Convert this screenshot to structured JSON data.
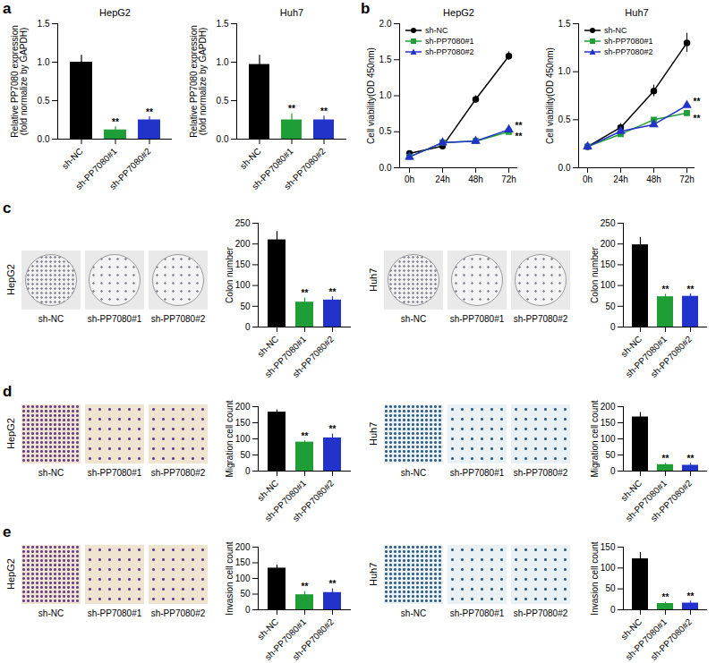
{
  "chart_data": [
    {
      "type": "bar",
      "panel": "a",
      "title": "HepG2",
      "categories": [
        "sh-NC",
        "sh-PP7080#1",
        "sh-PP7080#2"
      ],
      "values": [
        1.0,
        0.12,
        0.25
      ],
      "errors": [
        0.09,
        0.04,
        0.04
      ],
      "significance": [
        null,
        "**",
        "**"
      ],
      "colors": [
        "#000000",
        "#1f9e38",
        "#2233cc"
      ],
      "y_label": "Relative PP7080 expression\n(fold normalize by GAPDH)",
      "ylim": [
        0,
        1.5
      ],
      "yticks": [
        {
          "value": 0,
          "label": "0.0"
        },
        0.5,
        {
          "value": 1,
          "label": "1.0"
        },
        1.5
      ]
    },
    {
      "type": "bar",
      "title": "Huh7",
      "categories": [
        "sh-NC",
        "sh-PP7080#1",
        "sh-PP7080#2"
      ],
      "values": [
        0.97,
        0.25,
        0.25
      ],
      "errors": [
        0.12,
        0.08,
        0.05
      ],
      "significance": [
        null,
        "**",
        "**"
      ],
      "colors": [
        "#000000",
        "#1f9e38",
        "#2233cc"
      ],
      "y_label": "Relative PP7080 expression\n(fold normalize by GAPDH)",
      "ylim": [
        0,
        1.5
      ],
      "yticks": [
        {
          "value": 0,
          "label": "0.0"
        },
        0.5,
        {
          "value": 1,
          "label": "1.0"
        },
        1.5
      ]
    },
    {
      "type": "line",
      "panel": "b",
      "title": "HepG2",
      "x": [
        "0h",
        "24h",
        "48h",
        "72h"
      ],
      "legend": "top-left",
      "y_label": "Cell viability(OD 450nm)",
      "ylim": [
        0,
        2
      ],
      "yticks": [
        {
          "value": 0,
          "label": "0.0"
        },
        0.5,
        {
          "value": 1,
          "label": "1.0"
        },
        1.5,
        {
          "value": 2,
          "label": "2.0"
        }
      ],
      "series": [
        {
          "name": "sh-NC",
          "color": "#000000",
          "marker": "circle",
          "values": [
            0.2,
            0.3,
            0.95,
            1.55
          ],
          "errors": [
            0.02,
            0.04,
            0.05,
            0.06
          ]
        },
        {
          "name": "sh-PP7080#1",
          "color": "#1f9e38",
          "marker": "square",
          "values": [
            0.15,
            0.35,
            0.37,
            0.5
          ],
          "errors": [
            0.02,
            0.03,
            0.02,
            0.03
          ],
          "significance": "**"
        },
        {
          "name": "sh-PP7080#2",
          "color": "#2233cc",
          "marker": "triangle",
          "values": [
            0.15,
            0.35,
            0.37,
            0.53
          ],
          "errors": [
            0.02,
            0.03,
            0.02,
            0.03
          ],
          "significance": "**"
        }
      ]
    },
    {
      "type": "line",
      "title": "Huh7",
      "x": [
        "0h",
        "24h",
        "48h",
        "72h"
      ],
      "legend": "top-left",
      "y_label": "Cell viability(OD 450nm)",
      "ylim": [
        0,
        1.5
      ],
      "yticks": [
        {
          "value": 0,
          "label": "0.0"
        },
        0.5,
        {
          "value": 1,
          "label": "1.0"
        },
        1.5
      ],
      "series": [
        {
          "name": "sh-NC",
          "color": "#000000",
          "marker": "circle",
          "values": [
            0.22,
            0.42,
            0.8,
            1.3
          ],
          "errors": [
            0.02,
            0.04,
            0.06,
            0.1
          ]
        },
        {
          "name": "sh-PP7080#1",
          "color": "#1f9e38",
          "marker": "square",
          "values": [
            0.22,
            0.35,
            0.5,
            0.57
          ],
          "errors": [
            0.02,
            0.02,
            0.02,
            0.02
          ],
          "significance": "**"
        },
        {
          "name": "sh-PP7080#2",
          "color": "#2233cc",
          "marker": "triangle",
          "values": [
            0.22,
            0.38,
            0.45,
            0.65
          ],
          "errors": [
            0.02,
            0.02,
            0.02,
            0.02
          ],
          "significance": "**"
        }
      ]
    },
    {
      "type": "bar",
      "categories": [
        "sh-NC",
        "sh-PP7080#1",
        "sh-PP7080#2"
      ],
      "values": [
        210,
        60,
        65
      ],
      "errors": [
        20,
        10,
        8
      ],
      "significance": [
        null,
        "**",
        "**"
      ],
      "colors": [
        "#000000",
        "#1f9e38",
        "#2233cc"
      ],
      "y_label": "Colon number",
      "ylim": [
        0,
        250
      ],
      "yticks": [
        0,
        50,
        100,
        150,
        200,
        250
      ]
    },
    {
      "type": "bar",
      "categories": [
        "sh-NC",
        "sh-PP7080#1",
        "sh-PP7080#2"
      ],
      "values": [
        198,
        73,
        74
      ],
      "errors": [
        18,
        6,
        6
      ],
      "significance": [
        null,
        "**",
        "**"
      ],
      "colors": [
        "#000000",
        "#1f9e38",
        "#2233cc"
      ],
      "y_label": "Colon number",
      "ylim": [
        0,
        250
      ],
      "yticks": [
        0,
        50,
        100,
        150,
        200,
        250
      ]
    },
    {
      "type": "bar",
      "categories": [
        "sh-NC",
        "sh-PP7080#1",
        "sh-PP7080#2"
      ],
      "values": [
        183,
        90,
        103
      ],
      "errors": [
        7,
        4,
        12
      ],
      "significance": [
        null,
        "**",
        "**"
      ],
      "colors": [
        "#000000",
        "#1f9e38",
        "#2233cc"
      ],
      "y_label": "Migration cell count",
      "ylim": [
        0,
        200
      ],
      "yticks": [
        0,
        50,
        100,
        150,
        200
      ]
    },
    {
      "type": "bar",
      "categories": [
        "sh-NC",
        "sh-PP7080#1",
        "sh-PP7080#2"
      ],
      "values": [
        168,
        20,
        18
      ],
      "errors": [
        14,
        4,
        6
      ],
      "significance": [
        null,
        "**",
        "**"
      ],
      "colors": [
        "#000000",
        "#1f9e38",
        "#2233cc"
      ],
      "y_label": "Migration cell count",
      "ylim": [
        0,
        200
      ],
      "yticks": [
        0,
        50,
        100,
        150,
        200
      ]
    },
    {
      "type": "bar",
      "categories": [
        "sh-NC",
        "sh-PP7080#1",
        "sh-PP7080#2"
      ],
      "values": [
        133,
        48,
        55
      ],
      "errors": [
        10,
        10,
        12
      ],
      "significance": [
        null,
        "**",
        "**"
      ],
      "colors": [
        "#000000",
        "#1f9e38",
        "#2233cc"
      ],
      "y_label": "Invasion cell count",
      "ylim": [
        0,
        200
      ],
      "yticks": [
        0,
        50,
        100,
        150,
        200
      ]
    },
    {
      "type": "bar",
      "categories": [
        "sh-NC",
        "sh-PP7080#1",
        "sh-PP7080#2"
      ],
      "values": [
        122,
        15,
        16
      ],
      "errors": [
        15,
        3,
        5
      ],
      "significance": [
        null,
        "**",
        "**"
      ],
      "colors": [
        "#000000",
        "#1f9e38",
        "#2233cc"
      ],
      "y_label": "Invasion cell count",
      "ylim": [
        0,
        150
      ],
      "yticks": [
        0,
        50,
        100,
        150
      ]
    }
  ],
  "images": [
    {
      "type": "image",
      "panel": "c",
      "kind": "plate",
      "cell_line": "HepG2",
      "labels": [
        "sh-NC",
        "sh-PP7080#1",
        "sh-PP7080#2"
      ]
    },
    {
      "type": "image",
      "kind": "plate",
      "cell_line": "Huh7",
      "labels": [
        "sh-NC",
        "sh-PP7080#1",
        "sh-PP7080#2"
      ]
    },
    {
      "type": "image",
      "panel": "d",
      "kind": "transwell",
      "cell_line": "HepG2",
      "labels": [
        "sh-NC",
        "sh-PP7080#1",
        "sh-PP7080#2"
      ]
    },
    {
      "type": "image",
      "kind": "transwell",
      "cell_line": "Huh7",
      "labels": [
        "sh-NC",
        "sh-PP7080#1",
        "sh-PP7080#2"
      ]
    },
    {
      "type": "image",
      "panel": "e",
      "kind": "transwell",
      "cell_line": "HepG2",
      "labels": [
        "sh-NC",
        "sh-PP7080#1",
        "sh-PP7080#2"
      ]
    },
    {
      "type": "image",
      "kind": "transwell",
      "cell_line": "Huh7",
      "labels": [
        "sh-NC",
        "sh-PP7080#1",
        "sh-PP7080#2"
      ]
    }
  ]
}
